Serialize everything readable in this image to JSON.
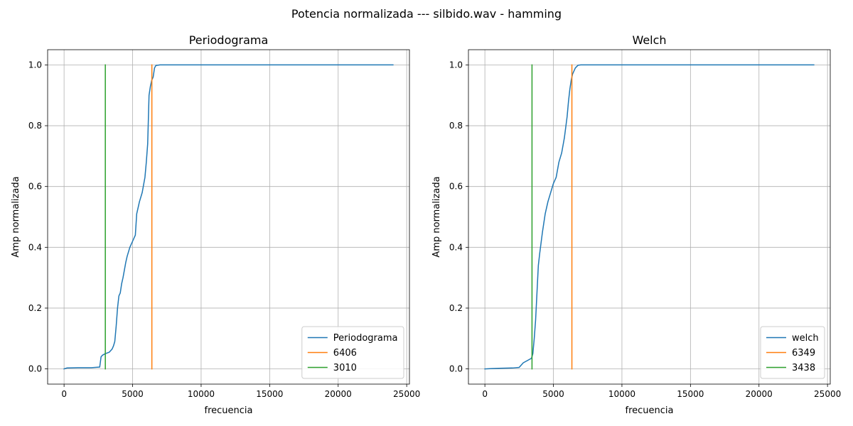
{
  "figure": {
    "suptitle": "Potencia normalizada --- silbido.wav - hamming"
  },
  "chart_data": [
    {
      "type": "line",
      "title": "Periodograma",
      "xlabel": "frecuencia",
      "ylabel": "Amp normalizada",
      "xlim": [
        -1200,
        25200
      ],
      "ylim": [
        -0.05,
        1.05
      ],
      "xticks": [
        0,
        5000,
        10000,
        15000,
        20000,
        25000
      ],
      "yticks": [
        0.0,
        0.2,
        0.4,
        0.6,
        0.8,
        1.0
      ],
      "xtick_labels": [
        "0",
        "5000",
        "10000",
        "15000",
        "20000",
        "25000"
      ],
      "ytick_labels": [
        "0.0",
        "0.2",
        "0.4",
        "0.6",
        "0.8",
        "1.0"
      ],
      "grid": true,
      "legend_position": "lower-right",
      "series": [
        {
          "name": "Periodograma",
          "kind": "curve",
          "color": "#1f77b4",
          "x": [
            0,
            200,
            1000,
            2000,
            2600,
            2700,
            2800,
            3000,
            3300,
            3500,
            3600,
            3700,
            3800,
            3900,
            4000,
            4100,
            4200,
            4300,
            4500,
            4600,
            4800,
            5000,
            5200,
            5300,
            5500,
            5700,
            5900,
            6000,
            6100,
            6150,
            6200,
            6300,
            6400,
            6500,
            6600,
            6700,
            7000,
            10000,
            15000,
            20000,
            24000
          ],
          "y": [
            0.0,
            0.003,
            0.004,
            0.004,
            0.006,
            0.04,
            0.045,
            0.05,
            0.055,
            0.065,
            0.075,
            0.09,
            0.14,
            0.2,
            0.24,
            0.25,
            0.28,
            0.3,
            0.35,
            0.37,
            0.4,
            0.42,
            0.44,
            0.51,
            0.55,
            0.58,
            0.63,
            0.68,
            0.74,
            0.82,
            0.9,
            0.93,
            0.95,
            0.96,
            0.99,
            0.998,
            1.0,
            1.0,
            1.0,
            1.0,
            1.0
          ]
        },
        {
          "name": "6406",
          "kind": "vline",
          "color": "#ff7f0e",
          "x": [
            6406,
            6406
          ],
          "y": [
            0,
            1
          ]
        },
        {
          "name": "3010",
          "kind": "vline",
          "color": "#2ca02c",
          "x": [
            3010,
            3010
          ],
          "y": [
            0,
            1
          ]
        }
      ]
    },
    {
      "type": "line",
      "title": "Welch",
      "xlabel": "frecuencia",
      "ylabel": "Amp normalizada",
      "xlim": [
        -1200,
        25200
      ],
      "ylim": [
        -0.05,
        1.05
      ],
      "xticks": [
        0,
        5000,
        10000,
        15000,
        20000,
        25000
      ],
      "yticks": [
        0.0,
        0.2,
        0.4,
        0.6,
        0.8,
        1.0
      ],
      "xtick_labels": [
        "0",
        "5000",
        "10000",
        "15000",
        "20000",
        "25000"
      ],
      "ytick_labels": [
        "0.0",
        "0.2",
        "0.4",
        "0.6",
        "0.8",
        "1.0"
      ],
      "grid": true,
      "legend_position": "lower-right",
      "series": [
        {
          "name": "welch",
          "kind": "curve",
          "color": "#1f77b4",
          "x": [
            0,
            500,
            1000,
            2000,
            2500,
            2800,
            3000,
            3200,
            3400,
            3500,
            3600,
            3700,
            3800,
            3900,
            4000,
            4200,
            4400,
            4600,
            4800,
            5000,
            5200,
            5400,
            5600,
            5800,
            6000,
            6100,
            6200,
            6300,
            6400,
            6600,
            6800,
            7000,
            10000,
            15000,
            20000,
            24000
          ],
          "y": [
            0.0,
            0.001,
            0.002,
            0.003,
            0.005,
            0.02,
            0.025,
            0.03,
            0.035,
            0.05,
            0.1,
            0.16,
            0.25,
            0.34,
            0.38,
            0.45,
            0.51,
            0.55,
            0.58,
            0.61,
            0.63,
            0.68,
            0.71,
            0.76,
            0.83,
            0.88,
            0.92,
            0.95,
            0.97,
            0.99,
            0.999,
            1.0,
            1.0,
            1.0,
            1.0,
            1.0
          ]
        },
        {
          "name": "6349",
          "kind": "vline",
          "color": "#ff7f0e",
          "x": [
            6349,
            6349
          ],
          "y": [
            0,
            1
          ]
        },
        {
          "name": "3438",
          "kind": "vline",
          "color": "#2ca02c",
          "x": [
            3438,
            3438
          ],
          "y": [
            0,
            1
          ]
        }
      ]
    }
  ]
}
